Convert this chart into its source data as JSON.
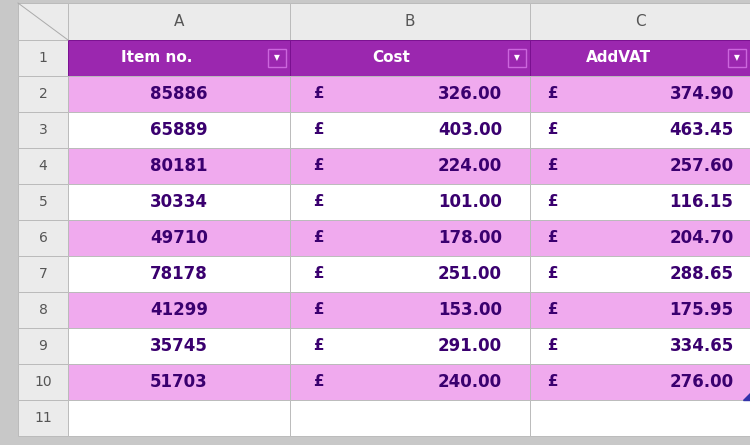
{
  "headers": [
    "Item no.",
    "Cost",
    "AddVAT"
  ],
  "rows": [
    [
      85886,
      326.0,
      374.9
    ],
    [
      65889,
      403.0,
      463.45
    ],
    [
      80181,
      224.0,
      257.6
    ],
    [
      30334,
      101.0,
      116.15
    ],
    [
      49710,
      178.0,
      204.7
    ],
    [
      78178,
      251.0,
      288.65
    ],
    [
      41299,
      153.0,
      175.95
    ],
    [
      35745,
      291.0,
      334.65
    ],
    [
      51703,
      240.0,
      276.0
    ]
  ],
  "col_letters": [
    "A",
    "B",
    "C"
  ],
  "header_bg": "#9B27AF",
  "header_text": "#FFFFFF",
  "row_bg_even": "#F0AAEE",
  "row_bg_odd": "#FFFFFF",
  "col_header_bg": "#EBEBEB",
  "col_header_text": "#555555",
  "grid_color": "#CCCCCC",
  "cell_text_color": "#3A006F",
  "pound_color": "#3A006F",
  "filter_arrow_color": "#FFFFFF",
  "background_color": "#C8C8C8",
  "fig_width": 7.5,
  "fig_height": 4.45,
  "dpi": 100
}
